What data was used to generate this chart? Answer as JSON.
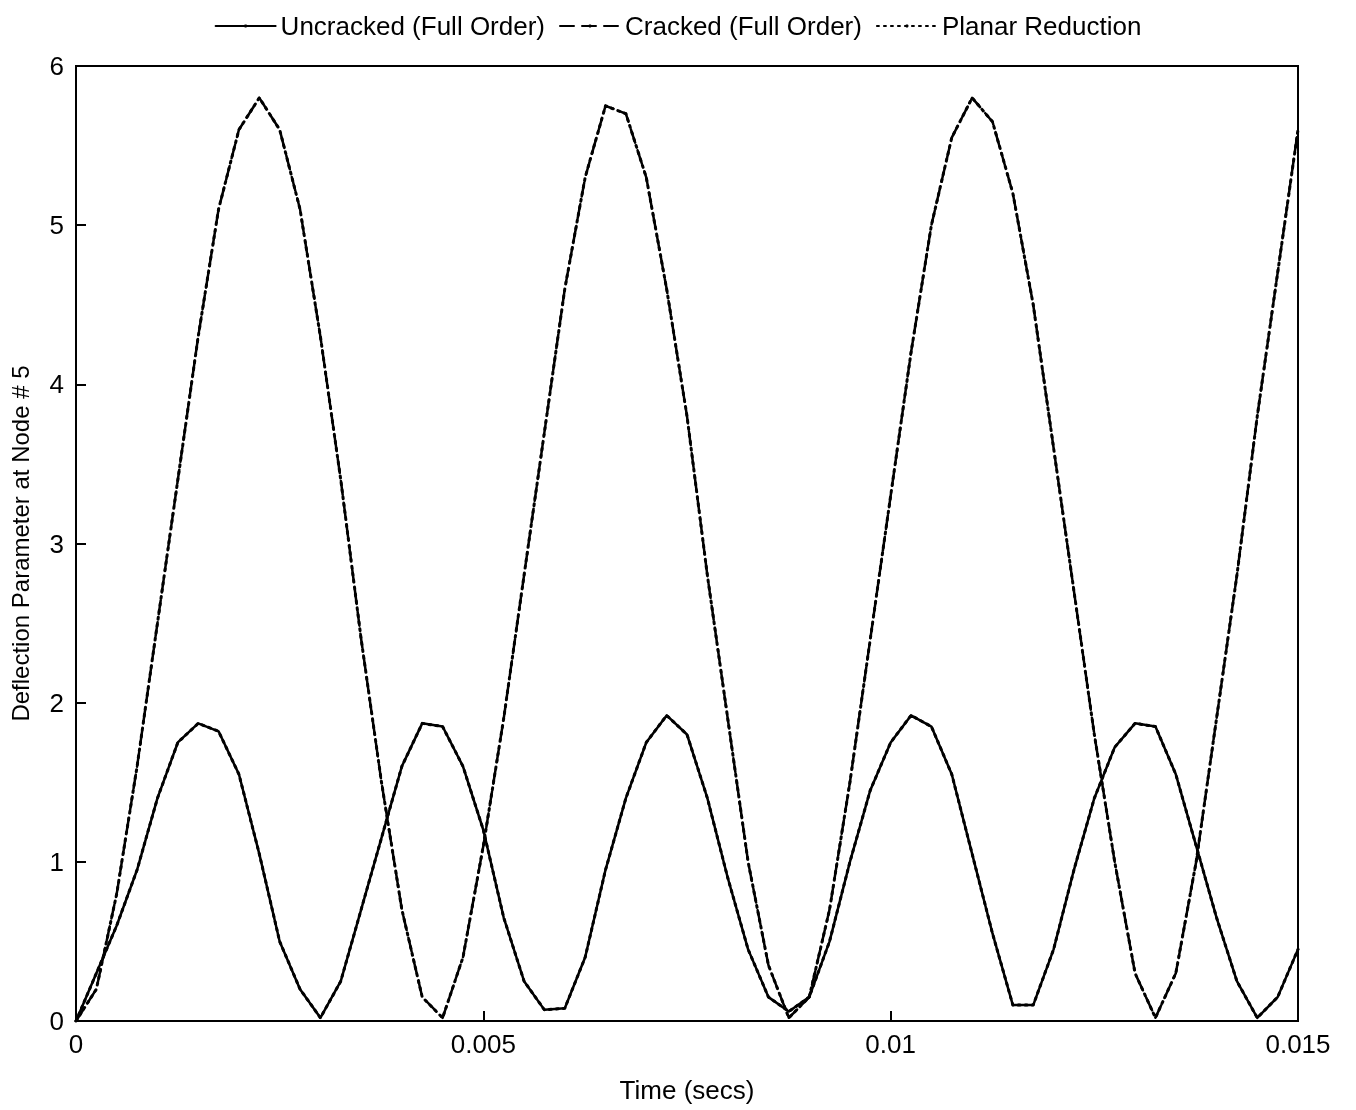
{
  "chart_data": {
    "type": "line",
    "xlabel": "Time (secs)",
    "ylabel": "Deflection Parameter at Node # 5",
    "x": [
      0,
      0.00025,
      0.0005,
      0.00075,
      0.001,
      0.00125,
      0.0015,
      0.00175,
      0.002,
      0.00225,
      0.0025,
      0.00275,
      0.003,
      0.00325,
      0.0035,
      0.00375,
      0.004,
      0.00425,
      0.0045,
      0.00475,
      0.005,
      0.00525,
      0.0055,
      0.00575,
      0.006,
      0.00625,
      0.0065,
      0.00675,
      0.007,
      0.00725,
      0.0075,
      0.00775,
      0.008,
      0.00825,
      0.0085,
      0.00875,
      0.009,
      0.00925,
      0.0095,
      0.00975,
      0.01,
      0.01025,
      0.0105,
      0.01075,
      0.011,
      0.01125,
      0.0115,
      0.01175,
      0.012,
      0.01225,
      0.0125,
      0.01275,
      0.013,
      0.01325,
      0.0135,
      0.01375,
      0.014,
      0.01425,
      0.0145,
      0.01475,
      0.015
    ],
    "series": [
      {
        "name": "Uncracked (Full Order)",
        "color": "#000000",
        "line_style": "solid",
        "values": [
          0,
          0.3,
          0.6,
          0.95,
          1.4,
          1.75,
          1.87,
          1.82,
          1.55,
          1.05,
          0.5,
          0.2,
          0.02,
          0.25,
          0.7,
          1.15,
          1.6,
          1.87,
          1.85,
          1.6,
          1.2,
          0.65,
          0.25,
          0.07,
          0.08,
          0.4,
          0.95,
          1.4,
          1.75,
          1.92,
          1.8,
          1.4,
          0.9,
          0.45,
          0.15,
          0.06,
          0.15,
          0.5,
          1.0,
          1.45,
          1.75,
          1.92,
          1.85,
          1.55,
          1.05,
          0.55,
          0.1,
          0.1,
          0.45,
          0.95,
          1.4,
          1.72,
          1.87,
          1.85,
          1.55,
          1.1,
          0.65,
          0.25,
          0.02,
          0.15,
          0.45
        ]
      },
      {
        "name": "Cracked (Full Order)",
        "color": "#000000",
        "line_style": "dashed",
        "values": [
          0,
          0.2,
          0.8,
          1.6,
          2.5,
          3.4,
          4.3,
          5.1,
          5.6,
          5.8,
          5.6,
          5.1,
          4.3,
          3.4,
          2.4,
          1.5,
          0.7,
          0.15,
          0.02,
          0.4,
          1.1,
          1.9,
          2.8,
          3.7,
          4.6,
          5.3,
          5.75,
          5.7,
          5.3,
          4.6,
          3.8,
          2.8,
          1.9,
          1.0,
          0.35,
          0.02,
          0.15,
          0.7,
          1.5,
          2.4,
          3.3,
          4.2,
          5.0,
          5.55,
          5.8,
          5.65,
          5.2,
          4.5,
          3.6,
          2.7,
          1.8,
          1.0,
          0.3,
          0.02,
          0.3,
          1.0,
          1.9,
          2.8,
          3.8,
          4.7,
          5.6
        ]
      },
      {
        "name": "Planar Reduction",
        "color": "#000000",
        "line_style": "dotted",
        "values": [
          0,
          0.3,
          0.6,
          0.95,
          1.4,
          1.75,
          1.87,
          1.82,
          1.55,
          1.05,
          0.5,
          0.2,
          0.02,
          0.25,
          0.7,
          1.15,
          1.6,
          1.87,
          1.85,
          1.6,
          1.2,
          0.65,
          0.25,
          0.07,
          0.08,
          0.4,
          0.95,
          1.4,
          1.75,
          1.92,
          1.8,
          1.4,
          0.9,
          0.45,
          0.15,
          0.06,
          0.15,
          0.5,
          1.0,
          1.45,
          1.75,
          1.92,
          1.85,
          1.55,
          1.05,
          0.55,
          0.1,
          0.1,
          0.45,
          0.95,
          1.4,
          1.72,
          1.87,
          1.85,
          1.55,
          1.1,
          0.65,
          0.25,
          0.02,
          0.15,
          0.45
        ]
      },
      {
        "color": "#000000",
        "line_style": "dotted",
        "values": [
          0,
          0.2,
          0.8,
          1.6,
          2.5,
          3.4,
          4.3,
          5.1,
          5.6,
          5.8,
          5.6,
          5.1,
          4.3,
          3.4,
          2.4,
          1.5,
          0.7,
          0.15,
          0.02,
          0.4,
          1.1,
          1.9,
          2.8,
          3.7,
          4.6,
          5.3,
          5.75,
          5.7,
          5.3,
          4.6,
          3.8,
          2.8,
          1.9,
          1.0,
          0.35,
          0.02,
          0.15,
          0.7,
          1.5,
          2.4,
          3.3,
          4.2,
          5.0,
          5.55,
          5.8,
          5.65,
          5.2,
          4.5,
          3.6,
          2.7,
          1.8,
          1.0,
          0.3,
          0.02,
          0.3,
          1.0,
          1.9,
          2.8,
          3.8,
          4.7,
          5.6
        ]
      }
    ],
    "xlim": [
      0,
      0.015
    ],
    "xticks": [
      0,
      0.005,
      0.01,
      0.015
    ],
    "ylim": [
      0,
      6
    ],
    "yticks": [
      0,
      1,
      2,
      3,
      4,
      5,
      6
    ],
    "grid": false,
    "legend": "top",
    "marker": "none"
  }
}
